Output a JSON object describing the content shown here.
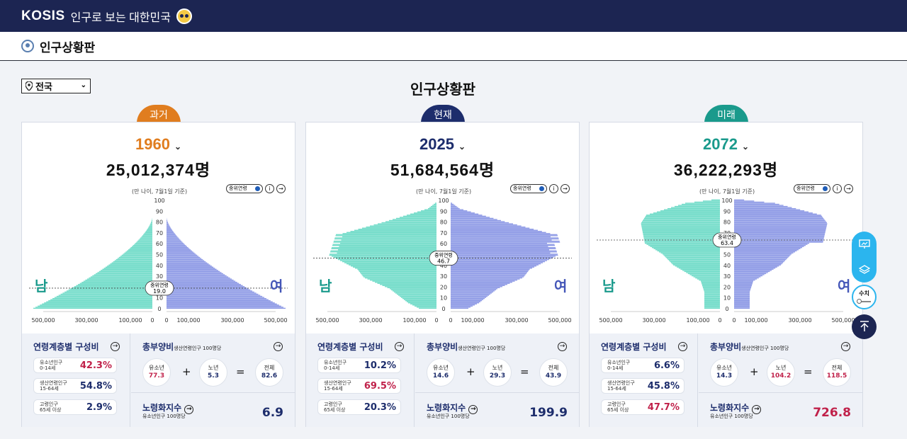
{
  "app": {
    "logo": "KOSIS",
    "logo_sub": "인구로 보는 대한민국"
  },
  "subheader": {
    "title": "인구상황판"
  },
  "region": {
    "selected": "전국"
  },
  "page_title": "인구상황판",
  "labels": {
    "basis": "(만 나이, 7월1일 기준)",
    "median_toggle": "중위연령",
    "male": "남",
    "female": "여",
    "median_label": "중위연령",
    "comp_title": "연령계층별 구성비",
    "dep_title": "총부양비",
    "dep_basis": "생산연령인구 100명당",
    "youth_dep": "유소년",
    "old_dep": "노년",
    "total_dep": "전체",
    "aging_title": "노령화지수",
    "aging_basis": "유소년인구 100명당",
    "youth": "유소년인구",
    "youth_range": "0-14세",
    "working": "생산연령인구",
    "working_range": "15-64세",
    "elderly": "고령인구",
    "elderly_range": "65세 이상",
    "plus": "+",
    "equals": "="
  },
  "colors": {
    "male": "#72dcc9",
    "female": "#8f9be6",
    "navy": "#1d2d6c",
    "red": "#c0214a",
    "orange": "#e07d1f",
    "teal": "#1a9a8c"
  },
  "axis": {
    "age_ticks": [
      "0",
      "10",
      "20",
      "30",
      "40",
      "50",
      "60",
      "70",
      "80",
      "90",
      "100"
    ],
    "pop_ticks": [
      "500,000",
      "300,000",
      "100,000",
      "0",
      "0",
      "100,000",
      "300,000",
      "500,000"
    ]
  },
  "panels": [
    {
      "tag": "과거",
      "year": "1960",
      "total": "25,012,374명",
      "median": "19.0",
      "median_age": 19.0,
      "shape": "past",
      "comp": {
        "youth": "42.3%",
        "working": "54.8%",
        "elderly": "2.9%"
      },
      "dep": {
        "youth": "77.3",
        "old": "5.3",
        "total": "82.6"
      },
      "aging": "6.9"
    },
    {
      "tag": "현재",
      "year": "2025",
      "total": "51,684,564명",
      "median": "46.7",
      "median_age": 46.7,
      "shape": "present",
      "comp": {
        "youth": "10.2%",
        "working": "69.5%",
        "elderly": "20.3%"
      },
      "dep": {
        "youth": "14.6",
        "old": "29.3",
        "total": "43.9"
      },
      "aging": "199.9"
    },
    {
      "tag": "미래",
      "year": "2072",
      "total": "36,222,293명",
      "median": "63.4",
      "median_age": 63.4,
      "shape": "future",
      "comp": {
        "youth": "6.6%",
        "working": "45.8%",
        "elderly": "47.7%"
      },
      "dep": {
        "youth": "14.3",
        "old": "104.2",
        "total": "118.5"
      },
      "aging": "726.8"
    }
  ],
  "fab": {
    "value_label": "수치"
  }
}
